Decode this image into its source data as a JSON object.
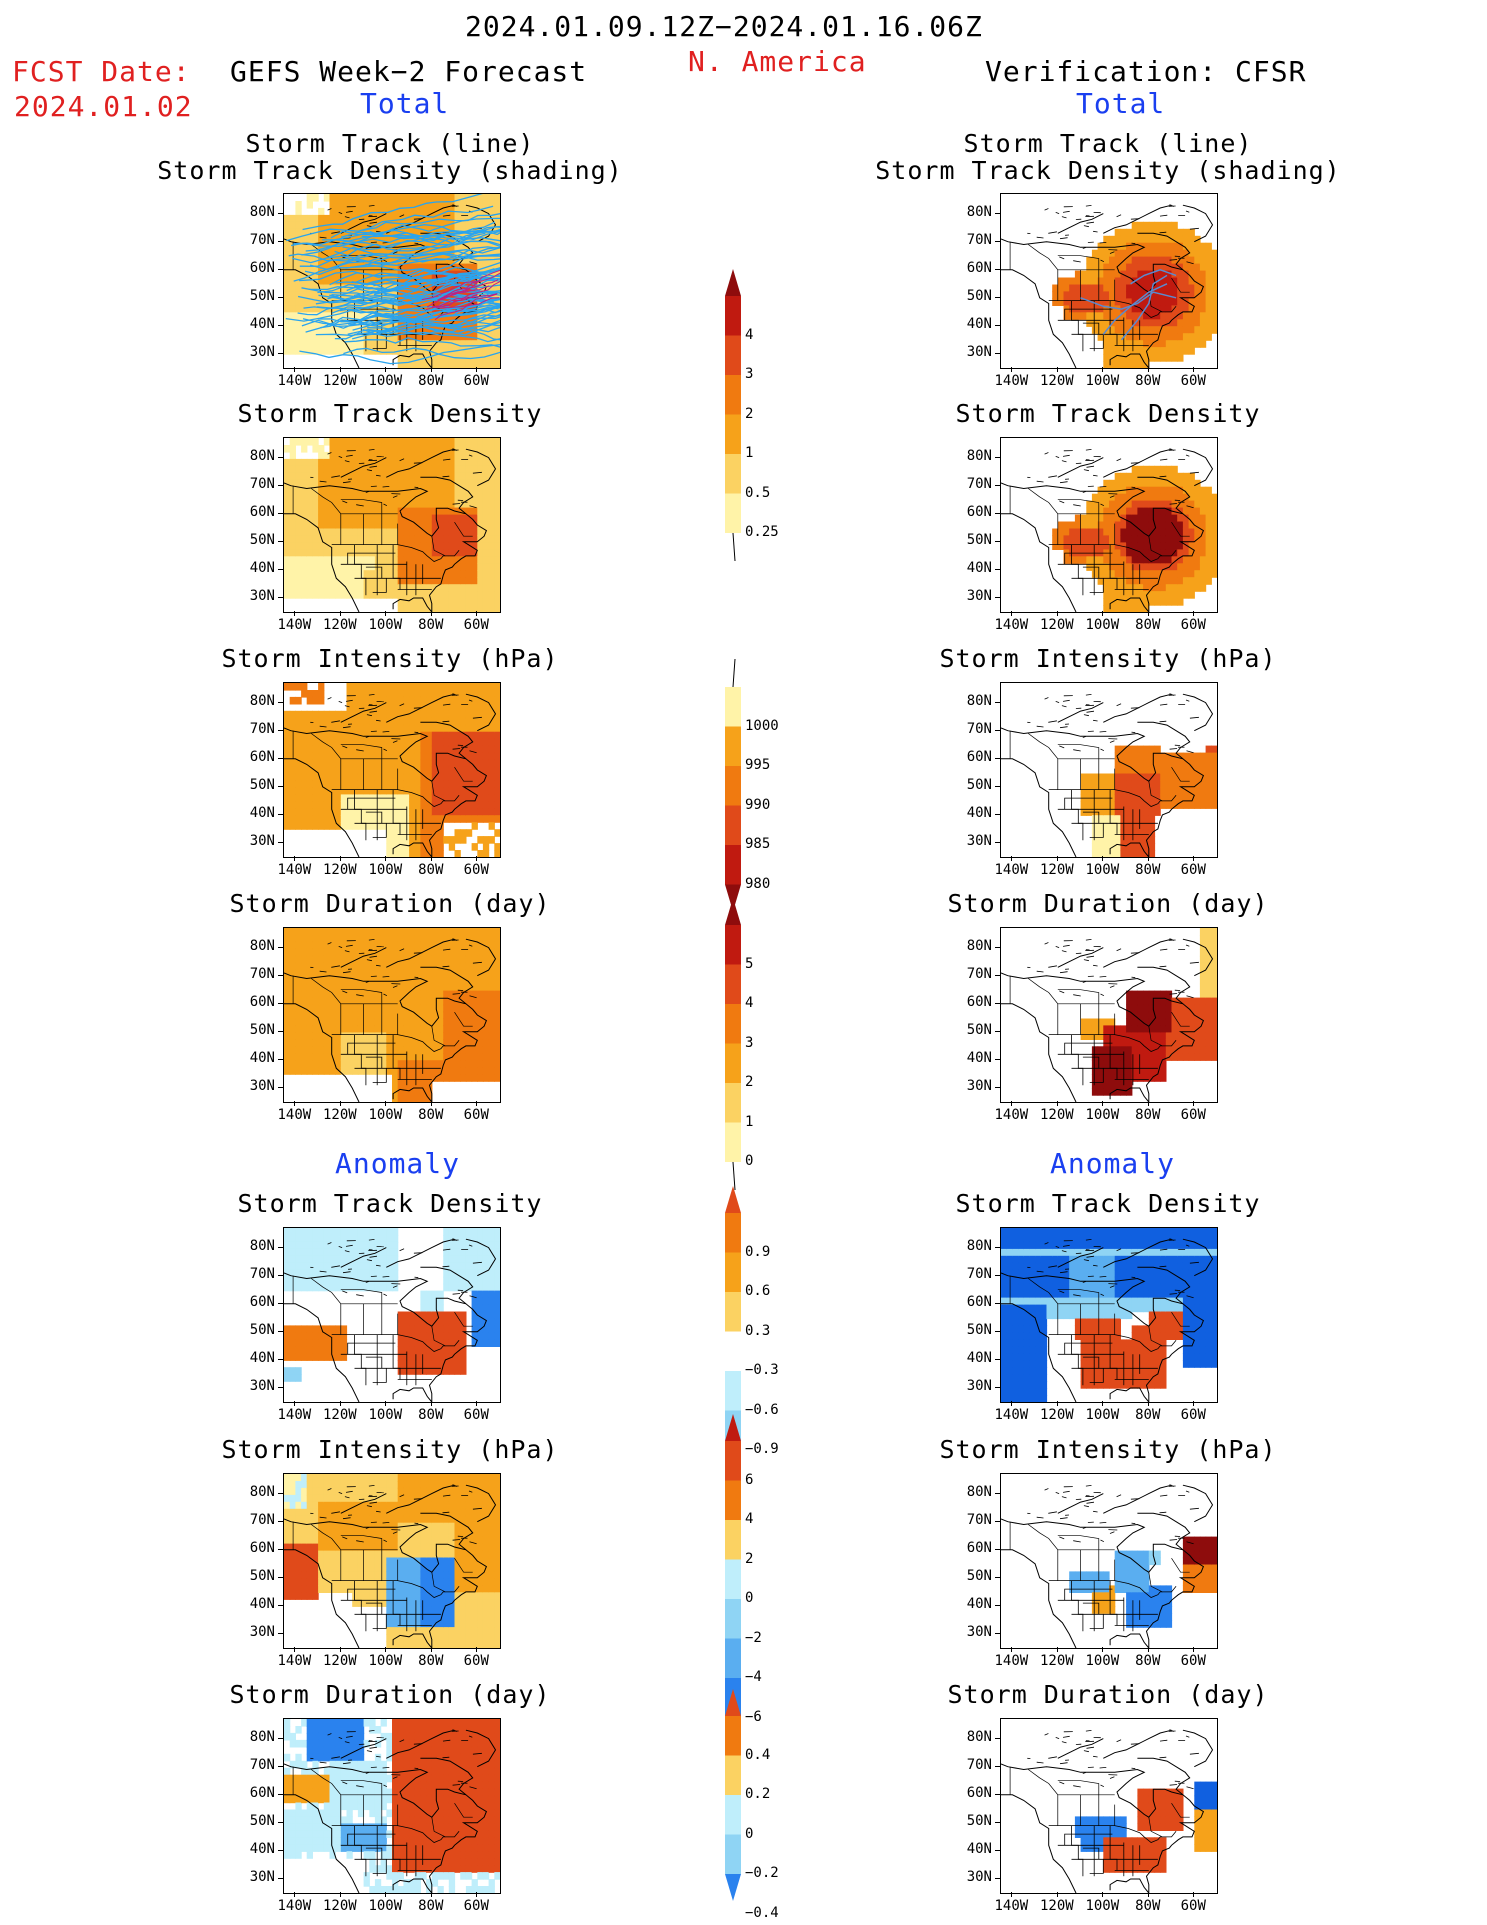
{
  "header": {
    "date_range": "2024.01.09.12Z−2024.01.16.06Z",
    "region": "N. America",
    "fcst_label": "FCST Date:",
    "fcst_date": "2024.01.02",
    "forecast_model": "GEFS Week−2 Forecast",
    "verification": "Verification: CFSR",
    "total_label": "Total",
    "anomaly_label": "Anomaly"
  },
  "panel_titles": {
    "track_line": "Storm Track (line)",
    "track_density_shading": "Storm Track Density (shading)",
    "track_density": "Storm Track Density",
    "intensity": "Storm Intensity (hPa)",
    "duration": "Storm Duration (day)"
  },
  "axes": {
    "lat_labels": [
      "80N",
      "70N",
      "60N",
      "50N",
      "40N",
      "30N"
    ],
    "lon_labels": [
      "140W",
      "120W",
      "100W",
      "80W",
      "60W"
    ]
  },
  "colorbars": {
    "track_density_total": [
      "4",
      "3",
      "2",
      "1",
      "0.5",
      "0.25"
    ],
    "intensity_total": [
      "1000",
      "995",
      "990",
      "985",
      "980"
    ],
    "duration_total": [
      "5",
      "4",
      "3",
      "2",
      "1",
      "0"
    ],
    "track_density_anom": [
      "0.9",
      "0.6",
      "0.3",
      "−0.3",
      "−0.6",
      "−0.9"
    ],
    "intensity_anom": [
      "6",
      "4",
      "2",
      "0",
      "−2",
      "−4",
      "−6"
    ],
    "duration_anom": [
      "0.4",
      "0.2",
      "0",
      "−0.2",
      "−0.4"
    ]
  },
  "colors": {
    "warm": [
      "#fff3a8",
      "#fbd262",
      "#f6a21a",
      "#f07a10",
      "#e04a1a",
      "#c01a10",
      "#8e0c0c"
    ],
    "cool": [
      "#ffffff",
      "#bfeefb",
      "#8fd4f4",
      "#5aaef0",
      "#2a82ee",
      "#1060e0"
    ],
    "title_red": "#e02020",
    "title_blue": "#1a3ff0"
  }
}
